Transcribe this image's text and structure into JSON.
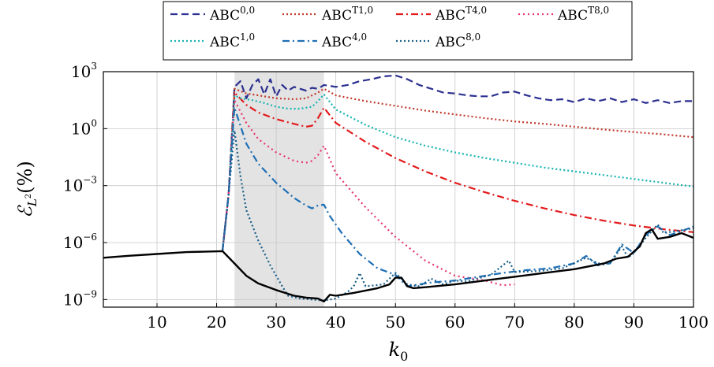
{
  "chart_data": {
    "type": "line",
    "xlabel": "k₀",
    "ylabel": "ℰ_{L²}(%)",
    "xlim": [
      1,
      100
    ],
    "ylim_log10": [
      -9.4,
      3
    ],
    "yscale": "log",
    "grid": true,
    "legend_position": "top-center",
    "shaded_region": [
      23,
      38
    ],
    "x_ticks": [
      10,
      20,
      30,
      40,
      50,
      60,
      70,
      80,
      90,
      100
    ],
    "y_ticks": [
      {
        "base": "10",
        "exp": "3",
        "value": 3
      },
      {
        "base": "10",
        "exp": "0",
        "value": 0
      },
      {
        "base": "10",
        "exp": "−3",
        "value": -3
      },
      {
        "base": "10",
        "exp": "−6",
        "value": -6
      },
      {
        "base": "10",
        "exp": "−9",
        "value": -9
      }
    ],
    "series": [
      {
        "name": "ABC",
        "sup": "0,0",
        "color": "#2b2f8f",
        "dash": "9,5",
        "points": [
          [
            21,
            -6.4
          ],
          [
            22,
            -3.5
          ],
          [
            23,
            2.2
          ],
          [
            24,
            2.5
          ],
          [
            25,
            1.6
          ],
          [
            26,
            2.3
          ],
          [
            27,
            2.6
          ],
          [
            28,
            1.8
          ],
          [
            29,
            2.6
          ],
          [
            30,
            1.7
          ],
          [
            31,
            2.3
          ],
          [
            32,
            2.0
          ],
          [
            33,
            2.2
          ],
          [
            34,
            2.1
          ],
          [
            35,
            2.0
          ],
          [
            36,
            2.15
          ],
          [
            37,
            2.1
          ],
          [
            38,
            2.3
          ],
          [
            40,
            2.2
          ],
          [
            42,
            2.3
          ],
          [
            44,
            2.5
          ],
          [
            46,
            2.6
          ],
          [
            48,
            2.75
          ],
          [
            50,
            2.8
          ],
          [
            52,
            2.6
          ],
          [
            54,
            2.3
          ],
          [
            56,
            2.1
          ],
          [
            58,
            1.9
          ],
          [
            60,
            1.85
          ],
          [
            62,
            1.75
          ],
          [
            64,
            1.7
          ],
          [
            66,
            1.7
          ],
          [
            68,
            1.9
          ],
          [
            70,
            1.95
          ],
          [
            72,
            1.75
          ],
          [
            74,
            1.6
          ],
          [
            76,
            1.5
          ],
          [
            78,
            1.55
          ],
          [
            80,
            1.4
          ],
          [
            82,
            1.6
          ],
          [
            84,
            1.45
          ],
          [
            86,
            1.6
          ],
          [
            88,
            1.4
          ],
          [
            90,
            1.55
          ],
          [
            92,
            1.35
          ],
          [
            94,
            1.5
          ],
          [
            96,
            1.35
          ],
          [
            98,
            1.45
          ],
          [
            100,
            1.45
          ]
        ]
      },
      {
        "name": "ABC",
        "sup": "T1,0",
        "color": "#c0392b",
        "dash": "2,3",
        "points": [
          [
            21,
            -6.4
          ],
          [
            22,
            -3.5
          ],
          [
            23,
            2.1
          ],
          [
            25,
            1.85
          ],
          [
            27,
            1.75
          ],
          [
            30,
            1.6
          ],
          [
            33,
            1.55
          ],
          [
            35,
            1.6
          ],
          [
            37,
            1.9
          ],
          [
            38,
            2.1
          ],
          [
            40,
            1.75
          ],
          [
            45,
            1.45
          ],
          [
            50,
            1.2
          ],
          [
            55,
            0.95
          ],
          [
            60,
            0.75
          ],
          [
            65,
            0.55
          ],
          [
            70,
            0.38
          ],
          [
            75,
            0.25
          ],
          [
            80,
            0.1
          ],
          [
            85,
            -0.05
          ],
          [
            90,
            -0.18
          ],
          [
            95,
            -0.3
          ],
          [
            100,
            -0.45
          ]
        ]
      },
      {
        "name": "ABC",
        "sup": "T4,0",
        "color": "#e31a1c",
        "dash": "9,4,2,4",
        "points": [
          [
            21,
            -6.4
          ],
          [
            22,
            -3.5
          ],
          [
            23,
            1.9
          ],
          [
            25,
            1.25
          ],
          [
            27,
            0.85
          ],
          [
            30,
            0.5
          ],
          [
            33,
            0.25
          ],
          [
            35,
            0.1
          ],
          [
            36,
            0.15
          ],
          [
            37,
            0.55
          ],
          [
            38,
            1.1
          ],
          [
            40,
            0.3
          ],
          [
            45,
            -0.7
          ],
          [
            50,
            -1.55
          ],
          [
            55,
            -2.25
          ],
          [
            60,
            -2.85
          ],
          [
            65,
            -3.35
          ],
          [
            70,
            -3.8
          ],
          [
            75,
            -4.2
          ],
          [
            80,
            -4.55
          ],
          [
            85,
            -4.85
          ],
          [
            90,
            -5.1
          ],
          [
            95,
            -5.3
          ],
          [
            100,
            -5.45
          ]
        ]
      },
      {
        "name": "ABC",
        "sup": "T8,0",
        "color": "#e8356d",
        "dash": "2,4",
        "points": [
          [
            21,
            -6.4
          ],
          [
            22,
            -3.5
          ],
          [
            23,
            1.5
          ],
          [
            25,
            0.3
          ],
          [
            27,
            -0.55
          ],
          [
            30,
            -1.25
          ],
          [
            33,
            -1.7
          ],
          [
            35,
            -1.8
          ],
          [
            36,
            -1.7
          ],
          [
            37,
            -1.4
          ],
          [
            38,
            -0.9
          ],
          [
            40,
            -2.35
          ],
          [
            45,
            -4.15
          ],
          [
            50,
            -5.7
          ],
          [
            55,
            -6.95
          ],
          [
            60,
            -7.75
          ],
          [
            65,
            -8.0
          ],
          [
            68,
            -8.25
          ],
          [
            70,
            -8.2
          ]
        ]
      },
      {
        "name": "ABC",
        "sup": "1,0",
        "color": "#17b3b3",
        "dash": "2,3",
        "points": [
          [
            21,
            -6.4
          ],
          [
            22,
            -3.5
          ],
          [
            23,
            1.75
          ],
          [
            24,
            1.6
          ],
          [
            26,
            1.5
          ],
          [
            28,
            1.35
          ],
          [
            30,
            1.15
          ],
          [
            32,
            1.05
          ],
          [
            34,
            1.05
          ],
          [
            36,
            1.15
          ],
          [
            37,
            1.45
          ],
          [
            38,
            1.8
          ],
          [
            40,
            1.0
          ],
          [
            45,
            0.2
          ],
          [
            50,
            -0.45
          ],
          [
            55,
            -0.9
          ],
          [
            60,
            -1.25
          ],
          [
            65,
            -1.55
          ],
          [
            70,
            -1.8
          ],
          [
            75,
            -2.05
          ],
          [
            80,
            -2.25
          ],
          [
            85,
            -2.45
          ],
          [
            90,
            -2.65
          ],
          [
            95,
            -2.85
          ],
          [
            100,
            -3.05
          ]
        ]
      },
      {
        "name": "ABC",
        "sup": "4,0",
        "color": "#1f6fb5",
        "dash": "9,4,2,4",
        "points": [
          [
            21,
            -6.4
          ],
          [
            22,
            -3.5
          ],
          [
            23,
            1.1
          ],
          [
            25,
            -0.8
          ],
          [
            27,
            -1.85
          ],
          [
            30,
            -2.85
          ],
          [
            33,
            -3.65
          ],
          [
            35,
            -4.05
          ],
          [
            36,
            -4.2
          ],
          [
            37,
            -4.05
          ],
          [
            38,
            -4.0
          ],
          [
            39,
            -4.6
          ],
          [
            41,
            -5.5
          ],
          [
            44,
            -6.6
          ],
          [
            47,
            -7.35
          ],
          [
            50,
            -7.7
          ],
          [
            52,
            -8.3
          ],
          [
            54,
            -8.2
          ],
          [
            56,
            -8.1
          ],
          [
            60,
            -8.0
          ],
          [
            64,
            -7.8
          ],
          [
            68,
            -7.6
          ],
          [
            72,
            -7.45
          ],
          [
            76,
            -7.35
          ],
          [
            80,
            -7.1
          ],
          [
            82,
            -6.7
          ],
          [
            84,
            -7.2
          ],
          [
            86,
            -7.1
          ],
          [
            88,
            -6.1
          ],
          [
            90,
            -6.55
          ],
          [
            92,
            -5.6
          ],
          [
            94,
            -5.15
          ],
          [
            96,
            -5.6
          ],
          [
            98,
            -5.4
          ],
          [
            100,
            -5.15
          ]
        ]
      },
      {
        "name": "ABC",
        "sup": "8,0",
        "color": "#1a5f8a",
        "dash": "2,3",
        "points": [
          [
            21,
            -6.4
          ],
          [
            22,
            -3.5
          ],
          [
            23,
            -0.1
          ],
          [
            24,
            -2.5
          ],
          [
            25,
            -4.3
          ],
          [
            27,
            -5.9
          ],
          [
            29,
            -7.2
          ],
          [
            31,
            -8.3
          ],
          [
            32,
            -8.8
          ],
          [
            34,
            -8.95
          ],
          [
            38,
            -9.05
          ],
          [
            40,
            -8.95
          ],
          [
            42,
            -8.6
          ],
          [
            43,
            -8.3
          ],
          [
            44,
            -7.6
          ],
          [
            45,
            -8.3
          ],
          [
            48,
            -8.2
          ],
          [
            50,
            -7.6
          ],
          [
            52,
            -8.2
          ],
          [
            54,
            -8.3
          ],
          [
            56,
            -7.9
          ],
          [
            58,
            -8.2
          ],
          [
            60,
            -8.0
          ],
          [
            62,
            -8.05
          ],
          [
            66,
            -7.7
          ],
          [
            68,
            -7.2
          ],
          [
            69,
            -6.95
          ],
          [
            70,
            -7.55
          ],
          [
            74,
            -7.5
          ],
          [
            78,
            -7.35
          ],
          [
            82,
            -6.8
          ],
          [
            84,
            -7.1
          ],
          [
            86,
            -7.1
          ],
          [
            88,
            -6.2
          ],
          [
            89,
            -6.8
          ],
          [
            90,
            -6.55
          ],
          [
            92,
            -5.75
          ],
          [
            94,
            -5.05
          ],
          [
            95,
            -5.5
          ],
          [
            97,
            -5.4
          ],
          [
            100,
            -5.25
          ]
        ]
      },
      {
        "name": "",
        "sup": "",
        "color": "#000000",
        "dash": "",
        "legend": false,
        "points": [
          [
            1,
            -6.8
          ],
          [
            5,
            -6.7
          ],
          [
            10,
            -6.6
          ],
          [
            15,
            -6.5
          ],
          [
            21,
            -6.45
          ],
          [
            23,
            -7.1
          ],
          [
            25,
            -7.75
          ],
          [
            27,
            -8.15
          ],
          [
            30,
            -8.5
          ],
          [
            33,
            -8.8
          ],
          [
            35,
            -8.9
          ],
          [
            37,
            -8.95
          ],
          [
            38,
            -9.1
          ],
          [
            39,
            -8.75
          ],
          [
            40,
            -8.8
          ],
          [
            43,
            -8.65
          ],
          [
            47,
            -8.4
          ],
          [
            49,
            -8.2
          ],
          [
            50,
            -7.85
          ],
          [
            51,
            -7.85
          ],
          [
            52,
            -8.3
          ],
          [
            53,
            -8.4
          ],
          [
            55,
            -8.35
          ],
          [
            60,
            -8.2
          ],
          [
            65,
            -8.0
          ],
          [
            70,
            -7.8
          ],
          [
            75,
            -7.6
          ],
          [
            80,
            -7.4
          ],
          [
            85,
            -7.1
          ],
          [
            87,
            -6.85
          ],
          [
            89,
            -6.75
          ],
          [
            91,
            -6.2
          ],
          [
            92,
            -5.5
          ],
          [
            93,
            -5.3
          ],
          [
            94,
            -5.8
          ],
          [
            96,
            -5.7
          ],
          [
            98,
            -5.5
          ],
          [
            100,
            -5.75
          ]
        ]
      }
    ]
  }
}
